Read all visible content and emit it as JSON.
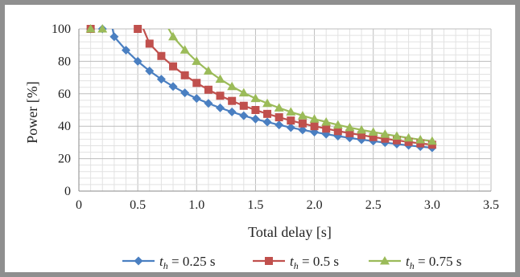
{
  "chart_data": {
    "type": "line",
    "xlabel": "Total delay [s]",
    "ylabel": "Power [%]",
    "xlim": [
      0,
      3.5
    ],
    "ylim": [
      0,
      100
    ],
    "xticks": [
      "0",
      "0.5",
      "1.0",
      "1.5",
      "2.0",
      "2.5",
      "3.0",
      "3.5"
    ],
    "yticks": [
      "0",
      "20",
      "40",
      "60",
      "80",
      "100"
    ],
    "grid": true,
    "legend_position": "bottom",
    "series": [
      {
        "name_prefix": "t",
        "name_sub": "h",
        "name_suffix": " = 0.25 s",
        "color": "#4a7fc1",
        "marker": "diamond",
        "x": [
          0.1,
          0.2,
          0.3,
          0.4,
          0.5,
          0.6,
          0.7,
          0.8,
          0.9,
          1.0,
          1.1,
          1.2,
          1.3,
          1.4,
          1.5,
          1.6,
          1.7,
          1.8,
          1.9,
          2.0,
          2.1,
          2.2,
          2.3,
          2.4,
          2.5,
          2.6,
          2.7,
          2.8,
          2.9,
          3.0
        ],
        "y": [
          100,
          100,
          95.2,
          86.9,
          80.0,
          74.1,
          69.0,
          64.5,
          60.6,
          57.1,
          54.1,
          51.3,
          48.8,
          46.5,
          44.4,
          42.6,
          40.8,
          39.2,
          37.7,
          36.4,
          35.1,
          33.9,
          32.8,
          31.7,
          30.8,
          29.9,
          29.0,
          28.2,
          27.4,
          26.7
        ]
      },
      {
        "name_prefix": "t",
        "name_sub": "h",
        "name_suffix": " = 0.5 s",
        "color": "#c0504d",
        "marker": "square",
        "x": [
          0.1,
          0.5,
          0.6,
          0.7,
          0.8,
          0.9,
          1.0,
          1.1,
          1.2,
          1.3,
          1.4,
          1.5,
          1.6,
          1.7,
          1.8,
          1.9,
          2.0,
          2.1,
          2.2,
          2.3,
          2.4,
          2.5,
          2.6,
          2.7,
          2.8,
          2.9,
          3.0
        ],
        "y": [
          100,
          100,
          90.9,
          83.3,
          76.9,
          71.4,
          66.7,
          62.5,
          58.8,
          55.6,
          52.6,
          50.0,
          47.6,
          45.5,
          43.5,
          41.7,
          40.0,
          38.5,
          37.0,
          35.7,
          34.5,
          33.3,
          32.3,
          31.3,
          30.3,
          29.4,
          28.6
        ]
      },
      {
        "name_prefix": "t",
        "name_sub": "h",
        "name_suffix": " = 0.75 s",
        "color": "#9bbb59",
        "marker": "triangle",
        "x": [
          0.1,
          0.2,
          0.8,
          0.9,
          1.0,
          1.1,
          1.2,
          1.3,
          1.4,
          1.5,
          1.6,
          1.7,
          1.8,
          1.9,
          2.0,
          2.1,
          2.2,
          2.3,
          2.4,
          2.5,
          2.6,
          2.7,
          2.8,
          2.9,
          3.0
        ],
        "y": [
          100,
          100,
          95.2,
          87.0,
          80.0,
          74.1,
          69.0,
          64.5,
          60.6,
          57.1,
          54.1,
          51.3,
          48.8,
          46.5,
          44.4,
          42.6,
          40.8,
          39.2,
          37.7,
          36.4,
          35.1,
          33.9,
          32.8,
          31.7,
          30.8
        ]
      }
    ]
  }
}
